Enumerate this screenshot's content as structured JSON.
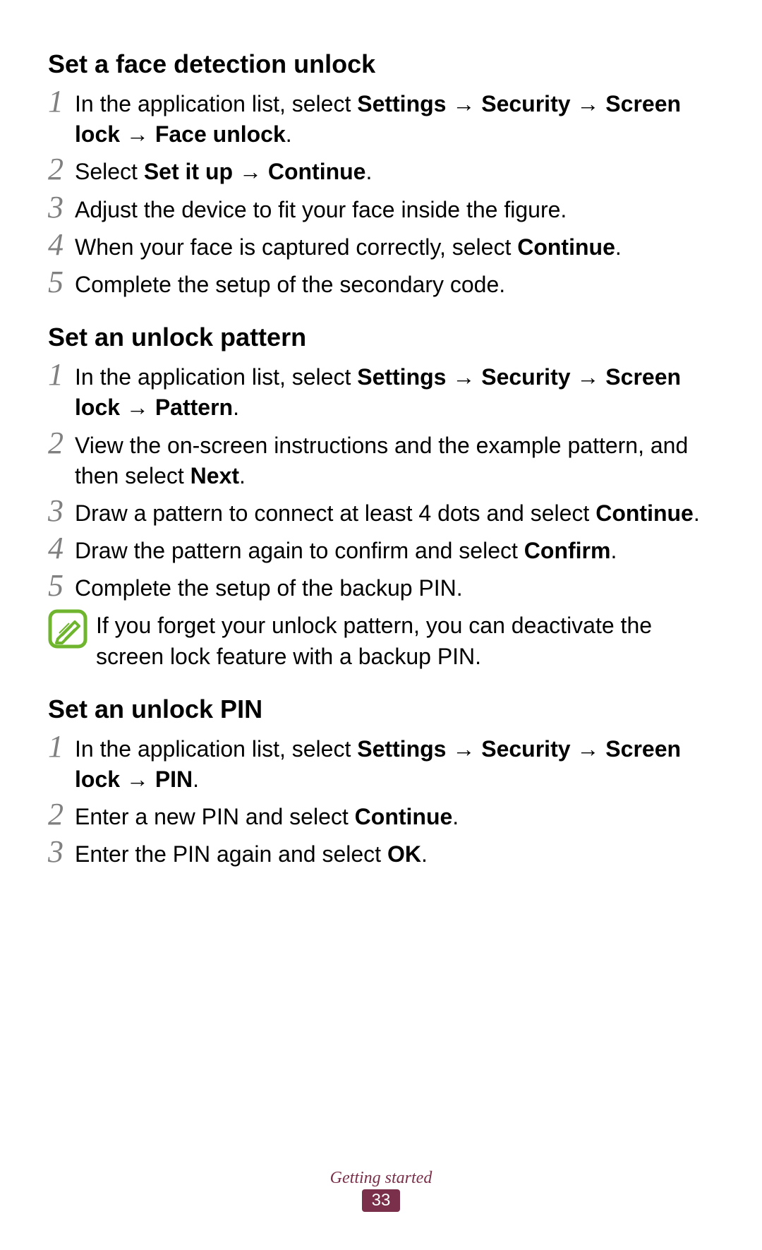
{
  "sections": [
    {
      "heading": "Set a face detection unlock",
      "steps": [
        {
          "num": "1",
          "segments": [
            {
              "t": "In the application list, select "
            },
            {
              "t": "Settings",
              "b": true
            },
            {
              "t": " → ",
              "b": true
            },
            {
              "t": "Security",
              "b": true
            },
            {
              "t": " → ",
              "b": true
            },
            {
              "t": "Screen lock",
              "b": true
            },
            {
              "t": " → ",
              "b": true
            },
            {
              "t": "Face unlock",
              "b": true
            },
            {
              "t": "."
            }
          ]
        },
        {
          "num": "2",
          "segments": [
            {
              "t": "Select "
            },
            {
              "t": "Set it up",
              "b": true
            },
            {
              "t": " → ",
              "b": true
            },
            {
              "t": "Continue",
              "b": true
            },
            {
              "t": "."
            }
          ]
        },
        {
          "num": "3",
          "segments": [
            {
              "t": "Adjust the device to fit your face inside the figure."
            }
          ]
        },
        {
          "num": "4",
          "segments": [
            {
              "t": "When your face is captured correctly, select "
            },
            {
              "t": "Continue",
              "b": true
            },
            {
              "t": "."
            }
          ]
        },
        {
          "num": "5",
          "segments": [
            {
              "t": "Complete the setup of the secondary code."
            }
          ]
        }
      ]
    },
    {
      "heading": "Set an unlock pattern",
      "steps": [
        {
          "num": "1",
          "segments": [
            {
              "t": "In the application list, select "
            },
            {
              "t": "Settings",
              "b": true
            },
            {
              "t": " → ",
              "b": true
            },
            {
              "t": "Security",
              "b": true
            },
            {
              "t": " → ",
              "b": true
            },
            {
              "t": "Screen lock",
              "b": true
            },
            {
              "t": " → ",
              "b": true
            },
            {
              "t": "Pattern",
              "b": true
            },
            {
              "t": "."
            }
          ]
        },
        {
          "num": "2",
          "segments": [
            {
              "t": "View the on-screen instructions and the example pattern, and then select "
            },
            {
              "t": "Next",
              "b": true
            },
            {
              "t": "."
            }
          ]
        },
        {
          "num": "3",
          "segments": [
            {
              "t": "Draw a pattern to connect at least 4 dots and select "
            },
            {
              "t": "Continue",
              "b": true
            },
            {
              "t": "."
            }
          ]
        },
        {
          "num": "4",
          "segments": [
            {
              "t": "Draw the pattern again to confirm and select "
            },
            {
              "t": "Confirm",
              "b": true
            },
            {
              "t": "."
            }
          ]
        },
        {
          "num": "5",
          "segments": [
            {
              "t": "Complete the setup of the backup PIN."
            }
          ]
        }
      ],
      "note": "If you forget your unlock pattern, you can deactivate the screen lock feature with a backup PIN."
    },
    {
      "heading": "Set an unlock PIN",
      "steps": [
        {
          "num": "1",
          "segments": [
            {
              "t": "In the application list, select "
            },
            {
              "t": "Settings",
              "b": true
            },
            {
              "t": " → ",
              "b": true
            },
            {
              "t": "Security",
              "b": true
            },
            {
              "t": " → ",
              "b": true
            },
            {
              "t": "Screen lock",
              "b": true
            },
            {
              "t": " → ",
              "b": true
            },
            {
              "t": "PIN",
              "b": true
            },
            {
              "t": "."
            }
          ]
        },
        {
          "num": "2",
          "segments": [
            {
              "t": "Enter a new PIN and select "
            },
            {
              "t": "Continue",
              "b": true
            },
            {
              "t": "."
            }
          ]
        },
        {
          "num": "3",
          "segments": [
            {
              "t": "Enter the PIN again and select "
            },
            {
              "t": "OK",
              "b": true
            },
            {
              "t": "."
            }
          ]
        }
      ]
    }
  ],
  "footer": {
    "label": "Getting started",
    "page": "33"
  },
  "colors": {
    "num_gray": "#808080",
    "accent": "#7a2f4a",
    "note_icon": "#6fb52e"
  }
}
